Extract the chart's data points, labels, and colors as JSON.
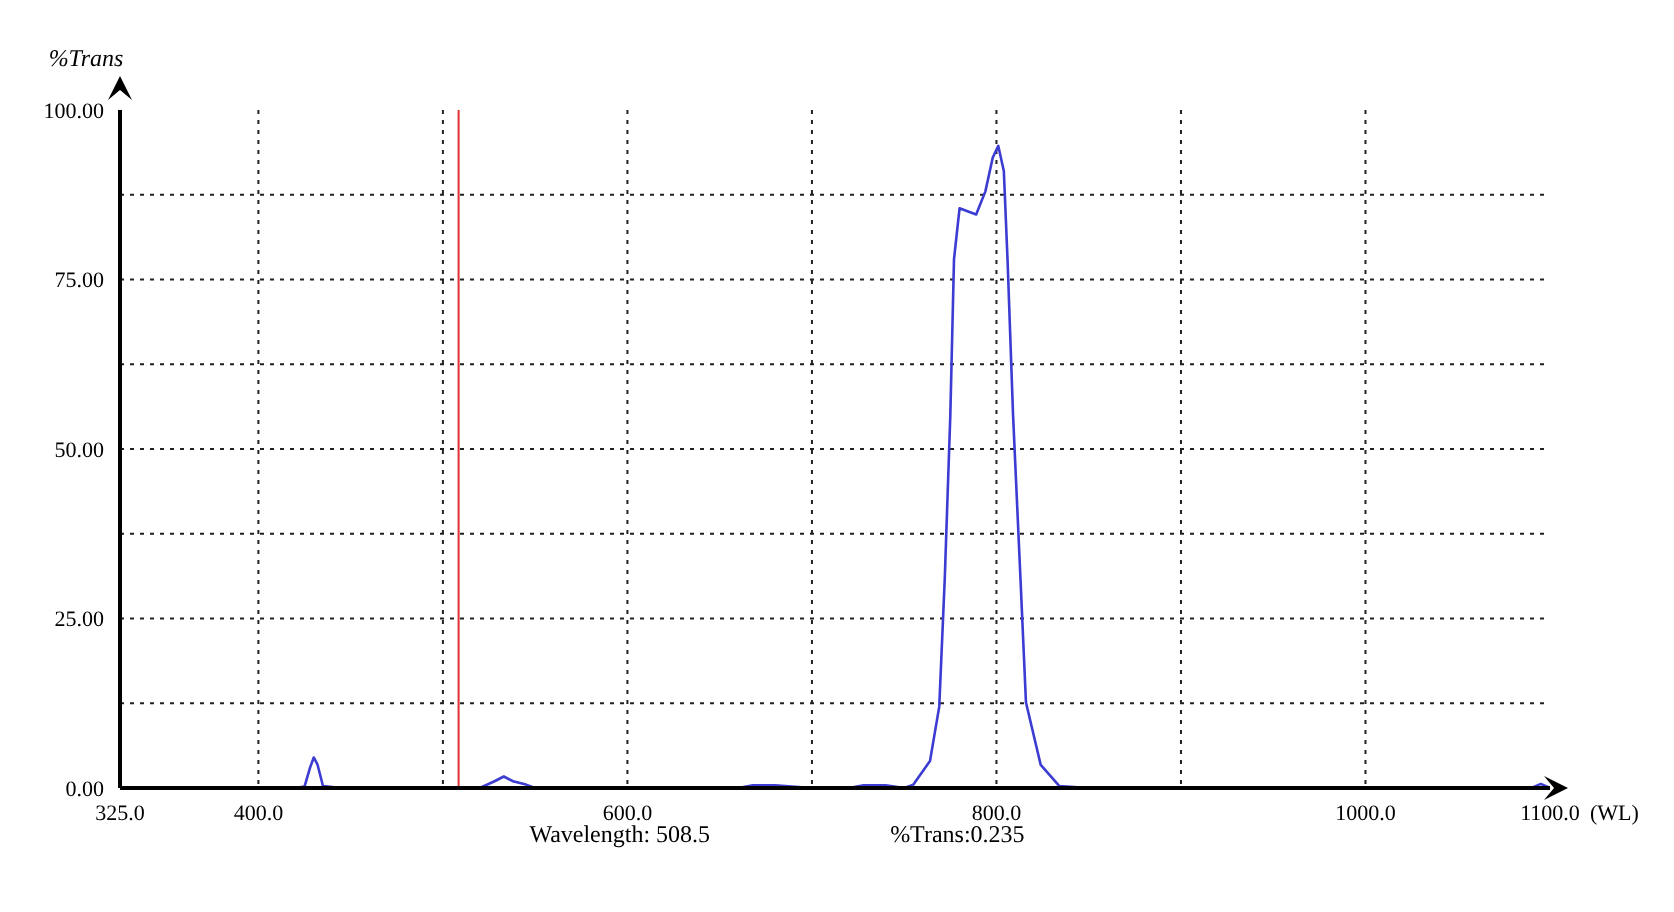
{
  "chart_data": {
    "type": "line",
    "xlabel": "(WL)",
    "ylabel": "%Trans",
    "x": [
      325,
      380,
      420,
      425,
      428,
      430,
      432,
      435,
      445,
      500,
      520,
      528,
      533,
      538,
      545,
      550,
      600,
      660,
      668,
      680,
      700,
      720,
      728,
      740,
      750,
      755,
      764,
      769,
      772,
      775,
      777,
      780,
      785,
      789,
      794,
      798,
      801,
      804,
      806,
      809,
      813,
      816,
      824,
      834,
      850,
      1000,
      1090,
      1095,
      1100
    ],
    "series": [
      {
        "color": "#3c3cd2",
        "values": [
          0,
          0,
          0,
          0.2,
          3,
          4.5,
          3.5,
          0.3,
          0,
          0,
          0,
          1,
          1.7,
          1,
          0.5,
          0,
          0,
          0,
          0.4,
          0.4,
          0,
          0,
          0.4,
          0.4,
          0,
          0.5,
          4,
          12,
          31,
          55,
          78,
          85.5,
          85,
          84.6,
          88,
          93,
          94.7,
          91,
          78,
          55,
          31,
          12.6,
          3.4,
          0.3,
          0,
          0,
          0,
          0.6,
          0
        ]
      }
    ],
    "xlim": [
      325,
      1100
    ],
    "ylim": [
      0,
      100
    ],
    "xticks": [
      {
        "value": 325,
        "label": "325.0"
      },
      {
        "value": 400,
        "label": "400.0"
      },
      {
        "value": 500,
        "label": null
      },
      {
        "value": 600,
        "label": "600.0"
      },
      {
        "value": 700,
        "label": null
      },
      {
        "value": 800,
        "label": "800.0"
      },
      {
        "value": 900,
        "label": null
      },
      {
        "value": 1000,
        "label": "1000.0"
      },
      {
        "value": 1100,
        "label": "1100.0"
      }
    ],
    "yticks": [
      {
        "value": 0,
        "label": "0.00"
      },
      {
        "value": 12.5,
        "label": null
      },
      {
        "value": 25,
        "label": "25.00"
      },
      {
        "value": 37.5,
        "label": null
      },
      {
        "value": 50,
        "label": "50.00"
      },
      {
        "value": 62.5,
        "label": null
      },
      {
        "value": 75,
        "label": "75.00"
      },
      {
        "value": 87.5,
        "label": null
      },
      {
        "value": 100,
        "label": "100.00"
      }
    ],
    "grid": true,
    "marker": "none",
    "line_style": "solid",
    "ref_lines": [
      {
        "axis": "x",
        "value": 508.5,
        "label": null,
        "color": "#e03030",
        "line_style": "solid"
      }
    ],
    "annotations": [
      "Wavelength: 508.5",
      "%Trans:0.235"
    ]
  }
}
